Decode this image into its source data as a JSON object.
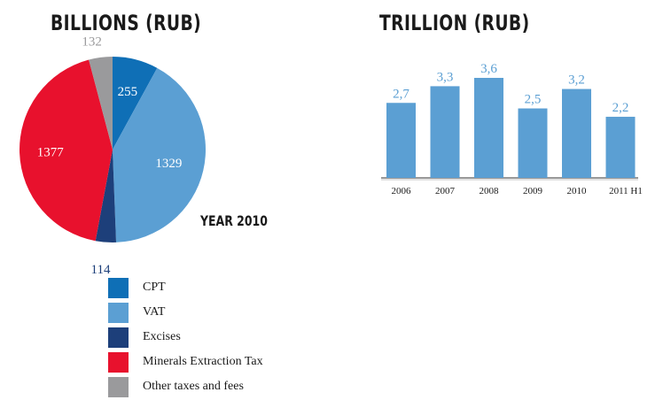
{
  "titles": {
    "pie": "BILLIONS (RUB)",
    "bar": "TRILLION (RUB)",
    "year": "YEAR 2010"
  },
  "colors": {
    "cpt": "#0f6fb6",
    "vat": "#5b9fd3",
    "excises": "#1d3f7a",
    "met": "#e8112d",
    "other": "#9a9a9c",
    "bar": "#5b9fd3",
    "bar_label": "#5b9fd3",
    "other_label": "#9a9a9c",
    "excises_label": "#1d3f7a"
  },
  "chart_data": [
    {
      "type": "pie",
      "title": "BILLIONS (RUB)",
      "annotation": "YEAR 2010",
      "slices": [
        {
          "key": "cpt",
          "name": "CPT",
          "value": 255
        },
        {
          "key": "vat",
          "name": "VAT",
          "value": 1329
        },
        {
          "key": "excises",
          "name": "Excises",
          "value": 114
        },
        {
          "key": "met",
          "name": "Minerals Extraction Tax",
          "value": 1377
        },
        {
          "key": "other",
          "name": "Other taxes and fees",
          "value": 132
        }
      ],
      "legend_position": "bottom"
    },
    {
      "type": "bar",
      "title": "TRILLION (RUB)",
      "categories": [
        "2006",
        "2007",
        "2008",
        "2009",
        "2010",
        "2011 H1"
      ],
      "values": [
        2.7,
        3.3,
        3.6,
        2.5,
        3.2,
        2.2
      ],
      "value_labels": [
        "2,7",
        "3,3",
        "3,6",
        "2,5",
        "3,2",
        "2,2"
      ],
      "ylim": [
        0,
        3.6
      ],
      "grid": false
    }
  ]
}
